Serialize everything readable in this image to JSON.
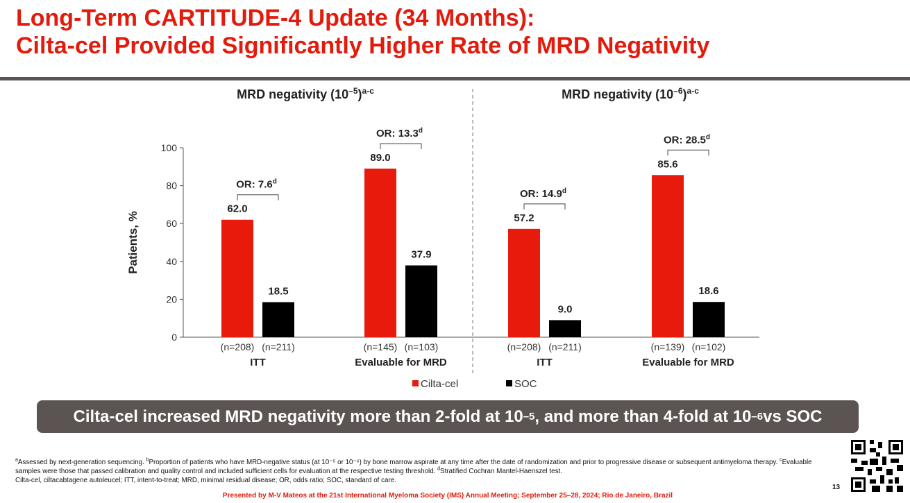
{
  "slide": {
    "title_line1": "Long-Term CARTITUDE-4 Update (34 Months):",
    "title_line2": "Cilta-cel Provided Significantly Higher Rate of MRD Negativity",
    "banner_part1": "Cilta-cel increased MRD negativity more than 2-fold at 10",
    "banner_exp1": "–5",
    "banner_part2": ", and more than 4-fold at 10",
    "banner_exp2": "–6",
    "banner_part3": " vs SOC",
    "footnote_a_mark": "a",
    "footnote_a": "Assessed by next-generation sequencing. ",
    "footnote_b_mark": "b",
    "footnote_b": "Proportion of patients who have MRD-negative status (at 10⁻⁵ or 10⁻⁶) by bone marrow aspirate at any time after the date of randomization and prior to progressive disease or subsequent antimyeloma therapy. ",
    "footnote_c_mark": "c",
    "footnote_c": "Evaluable samples were those that passed calibration and quality control and included sufficient cells for evaluation at the respective testing threshold. ",
    "footnote_d_mark": "d",
    "footnote_d": "Stratified Cochran Mantel-Haenszel test.",
    "abbreviations": "Cilta-cel, ciltacabtagene autoleucel; ITT, intent-to-treat; MRD, minimal residual disease; OR, odds ratio; SOC, standard of care.",
    "page_number": "13",
    "presented_by": "Presented by M-V Mateos at the 21st International Myeloma Society (IMS) Annual Meeting; September 25–28, 2024; Rio de Janeiro, Brazil"
  },
  "chart_data": {
    "type": "bar",
    "ylabel": "Patients, %",
    "ylim": [
      0,
      100
    ],
    "yticks": [
      0,
      20,
      40,
      60,
      80,
      100
    ],
    "panels": [
      {
        "title": "MRD negativity (10",
        "exp": "–5",
        "suffix": ")",
        "sup": "a-c"
      },
      {
        "title": "MRD negativity (10",
        "exp": "–6",
        "suffix": ")",
        "sup": "a-c"
      }
    ],
    "series": [
      {
        "name": "Cilta-cel",
        "color": "#e81a0b"
      },
      {
        "name": "SOC",
        "color": "#000000"
      }
    ],
    "groups": [
      {
        "panel": 0,
        "label": "ITT",
        "values": [
          62.0,
          18.5
        ],
        "labels": [
          "62.0",
          "18.5"
        ],
        "n": [
          "(n=208)",
          "(n=211)"
        ],
        "or_label": "OR: 7.6",
        "or_sup": "d"
      },
      {
        "panel": 0,
        "label": "Evaluable for MRD",
        "values": [
          89.0,
          37.9
        ],
        "labels": [
          "89.0",
          "37.9"
        ],
        "n": [
          "(n=145)",
          "(n=103)"
        ],
        "or_label": "OR: 13.3",
        "or_sup": "d"
      },
      {
        "panel": 1,
        "label": "ITT",
        "values": [
          57.2,
          9.0
        ],
        "labels": [
          "57.2",
          "9.0"
        ],
        "n": [
          "(n=208)",
          "(n=211)"
        ],
        "or_label": "OR: 14.9",
        "or_sup": "d"
      },
      {
        "panel": 1,
        "label": "Evaluable for MRD",
        "values": [
          85.6,
          18.6
        ],
        "labels": [
          "85.6",
          "18.6"
        ],
        "n": [
          "(n=139)",
          "(n=102)"
        ],
        "or_label": "OR: 28.5",
        "or_sup": "d"
      }
    ]
  }
}
